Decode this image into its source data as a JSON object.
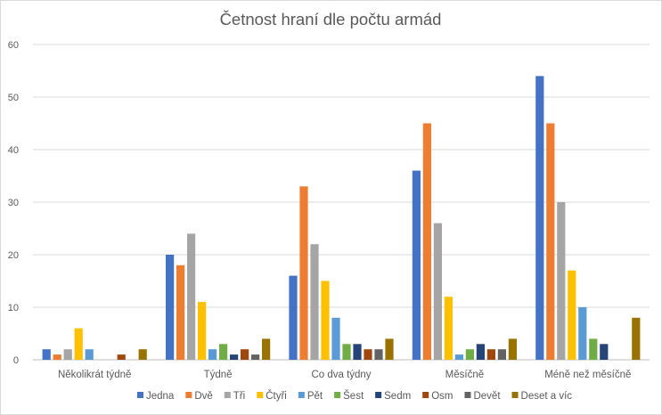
{
  "chart_data": {
    "type": "bar",
    "title": "Četnost hraní dle počtu armád",
    "xlabel": "",
    "ylabel": "",
    "ylim": [
      0,
      60
    ],
    "yticks": [
      "0",
      "10",
      "20",
      "30",
      "40",
      "50",
      "60"
    ],
    "grid": true,
    "legend_position": "bottom",
    "categories": [
      "Několikrát týdně",
      "Týdně",
      "Co dva týdny",
      "Měsíčně",
      "Méně než měsíčně"
    ],
    "series": [
      {
        "name": "Jedna",
        "color": "#4472C4",
        "values": [
          2,
          20,
          16,
          36,
          54
        ]
      },
      {
        "name": "Dvě",
        "color": "#ED7D31",
        "values": [
          1,
          18,
          33,
          45,
          45
        ]
      },
      {
        "name": "Tři",
        "color": "#A5A5A5",
        "values": [
          2,
          24,
          22,
          26,
          30
        ]
      },
      {
        "name": "Čtyři",
        "color": "#FFC000",
        "values": [
          6,
          11,
          15,
          12,
          17
        ]
      },
      {
        "name": "Pět",
        "color": "#5B9BD5",
        "values": [
          2,
          2,
          8,
          1,
          10
        ]
      },
      {
        "name": "Šest",
        "color": "#70AD47",
        "values": [
          0,
          3,
          3,
          2,
          4
        ]
      },
      {
        "name": "Sedm",
        "color": "#264478",
        "values": [
          0,
          1,
          3,
          3,
          3
        ]
      },
      {
        "name": "Osm",
        "color": "#9E480E",
        "values": [
          1,
          2,
          2,
          2,
          0
        ]
      },
      {
        "name": "Devět",
        "color": "#636363",
        "values": [
          0,
          1,
          2,
          2,
          0
        ]
      },
      {
        "name": "Deset a víc",
        "color": "#997300",
        "values": [
          2,
          4,
          4,
          4,
          8
        ]
      }
    ]
  }
}
